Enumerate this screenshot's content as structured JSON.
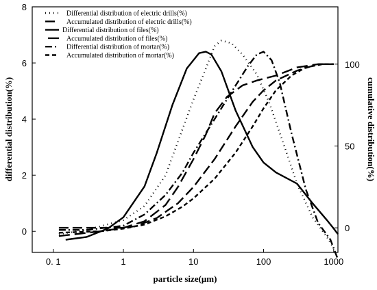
{
  "chart_data": {
    "type": "line",
    "xscale": "log",
    "xlabel": "particle size(μm)",
    "ylabel": "differential distribution(%)",
    "y2label": "cumulative distribution(%)",
    "xlim": [
      0.05,
      1150
    ],
    "ylim": [
      -0.75,
      8
    ],
    "y2lim": [
      -15,
      135
    ],
    "xticks": [
      {
        "value": 0.1,
        "label": "0. 1"
      },
      {
        "value": 1,
        "label": "1"
      },
      {
        "value": 10,
        "label": "10"
      },
      {
        "value": 100,
        "label": "100"
      },
      {
        "value": 1000,
        "label": "1000"
      }
    ],
    "yticks": [
      0,
      2,
      4,
      6,
      8
    ],
    "y2ticks": [
      0,
      50,
      100
    ],
    "legend_position": "top-left",
    "series": [
      {
        "name": "Differential distribution of electric drills(%)",
        "axis": "left",
        "dash": "1 5",
        "points": [
          [
            0.12,
            -0.1
          ],
          [
            0.3,
            0.05
          ],
          [
            1,
            0.4
          ],
          [
            2,
            0.9
          ],
          [
            4,
            2.0
          ],
          [
            6,
            3.2
          ],
          [
            10,
            4.7
          ],
          [
            15,
            5.8
          ],
          [
            20,
            6.6
          ],
          [
            25,
            6.8
          ],
          [
            35,
            6.7
          ],
          [
            50,
            6.3
          ],
          [
            80,
            5.6
          ],
          [
            120,
            4.6
          ],
          [
            200,
            3.0
          ],
          [
            300,
            1.7
          ],
          [
            500,
            0.5
          ],
          [
            800,
            -0.2
          ],
          [
            1000,
            -0.6
          ]
        ]
      },
      {
        "name": "Accumulated distribution of electric drills(%)",
        "axis": "right",
        "dash": "14 6",
        "points": [
          [
            0.12,
            0
          ],
          [
            0.5,
            0
          ],
          [
            1,
            0
          ],
          [
            1.5,
            1
          ],
          [
            3,
            6
          ],
          [
            6,
            15
          ],
          [
            10,
            25
          ],
          [
            20,
            42
          ],
          [
            40,
            62
          ],
          [
            70,
            77
          ],
          [
            100,
            84
          ],
          [
            150,
            90
          ],
          [
            300,
            96
          ],
          [
            600,
            100
          ],
          [
            1000,
            100
          ]
        ]
      },
      {
        "name": "Differential distribution of files(%)",
        "axis": "left",
        "dash": "",
        "points": [
          [
            0.15,
            -0.3
          ],
          [
            0.3,
            -0.2
          ],
          [
            0.6,
            0.1
          ],
          [
            1,
            0.5
          ],
          [
            2,
            1.6
          ],
          [
            3,
            2.8
          ],
          [
            5,
            4.5
          ],
          [
            8,
            5.8
          ],
          [
            12,
            6.35
          ],
          [
            15,
            6.4
          ],
          [
            18,
            6.3
          ],
          [
            25,
            5.7
          ],
          [
            40,
            4.3
          ],
          [
            70,
            3.0
          ],
          [
            100,
            2.45
          ],
          [
            150,
            2.1
          ],
          [
            300,
            1.7
          ],
          [
            500,
            1.0
          ],
          [
            800,
            0.4
          ],
          [
            1000,
            0.1
          ],
          [
            1150,
            -0.1
          ]
        ]
      },
      {
        "name": "Accumulated distribution of files(%)",
        "axis": "right",
        "dash": "16 7",
        "points": [
          [
            0.12,
            -5
          ],
          [
            0.5,
            -2
          ],
          [
            1,
            0
          ],
          [
            2,
            4
          ],
          [
            4,
            14
          ],
          [
            6,
            25
          ],
          [
            10,
            42
          ],
          [
            15,
            57
          ],
          [
            20,
            70
          ],
          [
            30,
            80
          ],
          [
            50,
            87
          ],
          [
            80,
            90
          ],
          [
            150,
            93
          ],
          [
            300,
            98
          ],
          [
            600,
            100
          ],
          [
            1000,
            100
          ]
        ]
      },
      {
        "name": "Differential distribution of mortar(%)",
        "axis": "left",
        "dash": "10 4 2 4",
        "points": [
          [
            0.12,
            0.05
          ],
          [
            0.3,
            0.05
          ],
          [
            1,
            0.2
          ],
          [
            2,
            0.6
          ],
          [
            4,
            1.3
          ],
          [
            7,
            2.1
          ],
          [
            10,
            2.8
          ],
          [
            20,
            4.0
          ],
          [
            40,
            5.2
          ],
          [
            60,
            5.9
          ],
          [
            80,
            6.3
          ],
          [
            100,
            6.4
          ],
          [
            130,
            6.1
          ],
          [
            170,
            5.3
          ],
          [
            250,
            3.5
          ],
          [
            400,
            1.5
          ],
          [
            600,
            0.3
          ],
          [
            900,
            -0.3
          ],
          [
            1150,
            -1.0
          ]
        ]
      },
      {
        "name": "Accumulated distribution of mortar(%)",
        "axis": "right",
        "dash": "6 4",
        "points": [
          [
            0.12,
            -3
          ],
          [
            0.5,
            -2
          ],
          [
            1,
            -0.5
          ],
          [
            2,
            2
          ],
          [
            4,
            7
          ],
          [
            7,
            13
          ],
          [
            10,
            18
          ],
          [
            20,
            30
          ],
          [
            40,
            46
          ],
          [
            70,
            62
          ],
          [
            100,
            73
          ],
          [
            150,
            84
          ],
          [
            250,
            93
          ],
          [
            400,
            98
          ],
          [
            700,
            100
          ],
          [
            1000,
            100
          ]
        ]
      }
    ]
  }
}
